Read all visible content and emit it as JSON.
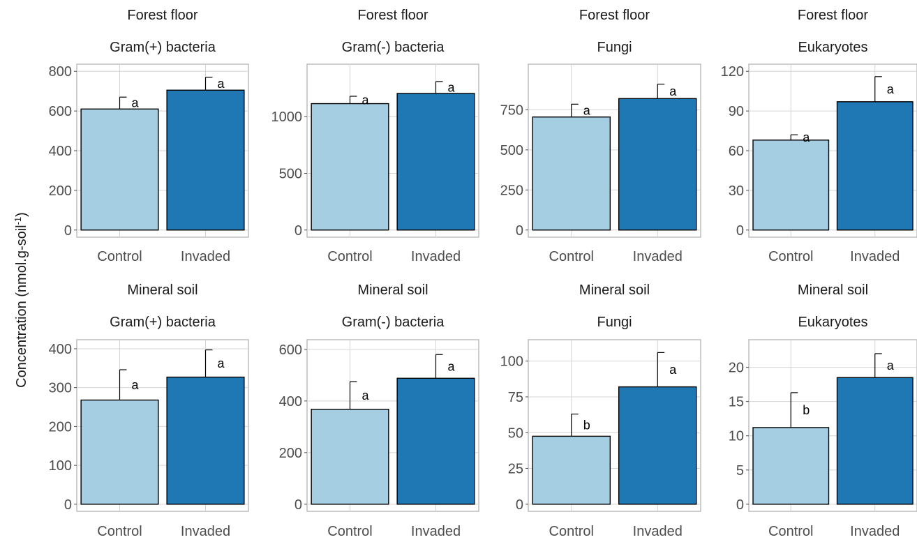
{
  "chart_data": {
    "type": "bar",
    "ylabel": "Concentration (nmol.g-soil",
    "ylabel_sup": "-1",
    "ylabel_close": ")",
    "categories": [
      "Control",
      "Invaded"
    ],
    "colors": {
      "Control": "#a6cee3",
      "Invaded": "#1f78b4"
    },
    "panels": [
      {
        "row_label": "Forest floor",
        "group": "Gram(+) bacteria",
        "ylim": [
          0,
          800
        ],
        "yticks": [
          0,
          200,
          400,
          600,
          800
        ],
        "values": [
          610,
          705
        ],
        "errors": [
          60,
          65
        ],
        "letters": [
          "a",
          "a"
        ]
      },
      {
        "row_label": "Forest floor",
        "group": "Gram(-) bacteria",
        "ylim": [
          0,
          1400
        ],
        "yticks": [
          0,
          500,
          1000
        ],
        "values": [
          1115,
          1205
        ],
        "errors": [
          65,
          105
        ],
        "letters": [
          "a",
          "a"
        ]
      },
      {
        "row_label": "Forest floor",
        "group": "Fungi",
        "ylim": [
          0,
          990
        ],
        "yticks": [
          0,
          250,
          500,
          750
        ],
        "values": [
          705,
          820
        ],
        "errors": [
          80,
          90
        ],
        "letters": [
          "a",
          "a"
        ]
      },
      {
        "row_label": "Forest floor",
        "group": "Eukaryotes",
        "ylim": [
          0,
          120
        ],
        "yticks": [
          0,
          30,
          60,
          90,
          120
        ],
        "values": [
          68,
          97
        ],
        "errors": [
          4,
          19
        ],
        "letters": [
          "a",
          "a"
        ]
      },
      {
        "row_label": "Mineral soil",
        "group": "Gram(+) bacteria",
        "ylim": [
          0,
          405
        ],
        "yticks": [
          0,
          100,
          200,
          300,
          400
        ],
        "values": [
          268,
          327
        ],
        "errors": [
          78,
          70
        ],
        "letters": [
          "a",
          "a"
        ]
      },
      {
        "row_label": "Mineral soil",
        "group": "Gram(-) bacteria",
        "ylim": [
          0,
          610
        ],
        "yticks": [
          0,
          200,
          400,
          600
        ],
        "values": [
          368,
          488
        ],
        "errors": [
          107,
          92
        ],
        "letters": [
          "a",
          "a"
        ]
      },
      {
        "row_label": "Mineral soil",
        "group": "Fungi",
        "ylim": [
          0,
          110
        ],
        "yticks": [
          0,
          25,
          50,
          75,
          100
        ],
        "values": [
          47.5,
          82
        ],
        "errors": [
          15.5,
          24
        ],
        "letters": [
          "b",
          "a"
        ]
      },
      {
        "row_label": "Mineral soil",
        "group": "Eukaryotes",
        "ylim": [
          0,
          23
        ],
        "yticks": [
          0,
          5,
          10,
          15,
          20
        ],
        "values": [
          11.2,
          18.5
        ],
        "errors": [
          5.1,
          3.5
        ],
        "letters": [
          "b",
          "a"
        ]
      }
    ]
  }
}
